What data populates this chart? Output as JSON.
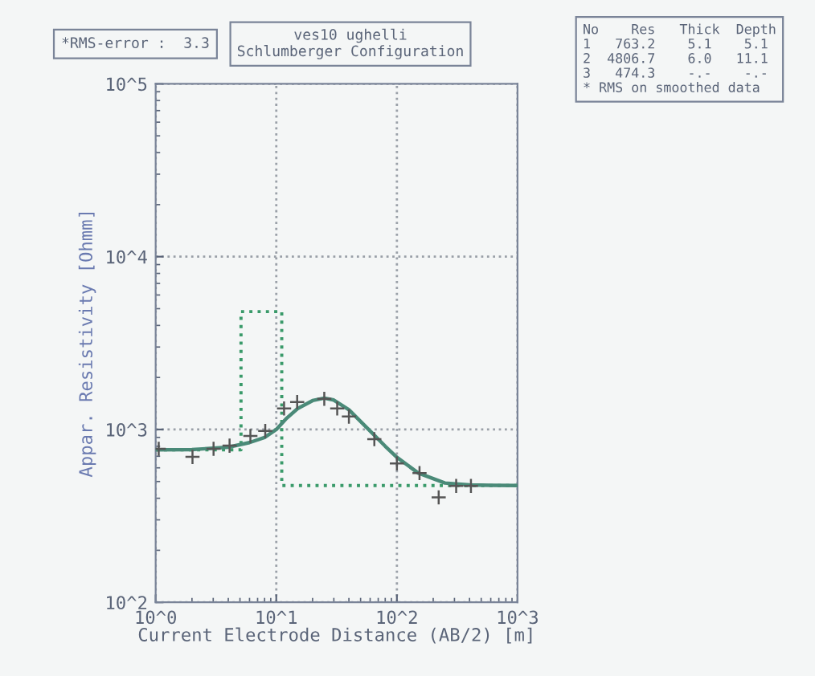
{
  "chart_data": {
    "type": "line",
    "title": "ves10 ughelli",
    "subtitle": "Schlumberger Configuration",
    "xlabel": "Current Electrode Distance (AB/2) [m]",
    "ylabel": "Appar. Resistivity [Ohmm]",
    "log": "xy",
    "xlim": [
      1,
      1000
    ],
    "ylim": [
      100,
      100000
    ],
    "xticks": [
      {
        "value": 1,
        "label": "10^0"
      },
      {
        "value": 10,
        "label": "10^1"
      },
      {
        "value": 100,
        "label": "10^2"
      },
      {
        "value": 1000,
        "label": "10^3"
      }
    ],
    "yticks": [
      {
        "value": 100,
        "label": "10^2"
      },
      {
        "value": 1000,
        "label": "10^3"
      },
      {
        "value": 10000,
        "label": "10^4"
      },
      {
        "value": 100000,
        "label": "10^5"
      }
    ],
    "grid": true,
    "legend": false,
    "annotations": [
      "*RMS-error :  3.3",
      "No    Res   Thick  Depth",
      "1   763.2    5.1    5.1",
      "2  4806.7    6.0   11.1",
      "3   474.3    -.-    -.-",
      "* RMS on smoothed data"
    ],
    "series": [
      {
        "type": "scatter",
        "marker": "cross",
        "color": "#555555",
        "x": [
          1.06,
          2.02,
          3.02,
          4.1,
          6.1,
          8.1,
          11.6,
          14.9,
          25,
          32,
          40,
          65,
          100,
          154,
          222,
          310,
          411
        ],
        "values": [
          773,
          694,
          773,
          806,
          918,
          980,
          1323,
          1442,
          1505,
          1323,
          1188,
          879,
          636,
          559,
          405,
          471,
          471
        ]
      },
      {
        "color": "#4a8a78",
        "line_style": "solid",
        "x": [
          1,
          2,
          4,
          6,
          8,
          10,
          12,
          15,
          20,
          25,
          30,
          40,
          60,
          80,
          100,
          150,
          250,
          400,
          600,
          1000
        ],
        "values": [
          763,
          765,
          790,
          840,
          900,
          1000,
          1150,
          1320,
          1470,
          1520,
          1480,
          1300,
          980,
          800,
          690,
          560,
          490,
          478,
          475,
          474
        ]
      },
      {
        "type": "step",
        "color": "#3a9a6a",
        "line_style": "dotted",
        "x": [
          1,
          5.1,
          11.1,
          1000
        ],
        "values": [
          763.2,
          4806.7,
          474.3,
          474.3
        ]
      }
    ]
  }
}
